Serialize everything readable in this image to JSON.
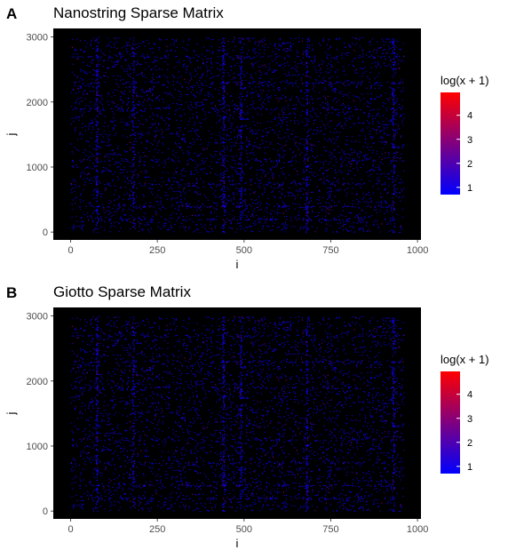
{
  "panels": [
    {
      "tag": "A",
      "title": "Nanostring Sparse Matrix"
    },
    {
      "tag": "B",
      "title": "Giotto Sparse Matrix"
    }
  ],
  "colors": {
    "panel_bg": "#000000",
    "low": "#0000ff",
    "high": "#ff0000",
    "tick": "#4d4d4d"
  },
  "chart_data": [
    {
      "type": "heatmap",
      "title": "Nanostring Sparse Matrix",
      "panel": "A",
      "xlabel": "i",
      "ylabel": "j",
      "xlim": [
        -50,
        1010
      ],
      "ylim": [
        -120,
        3130
      ],
      "x_ticks": [
        0,
        250,
        500,
        750,
        1000
      ],
      "x_tick_labels": [
        "0",
        "250",
        "500",
        "750",
        "1000"
      ],
      "y_ticks": [
        0,
        1000,
        2000,
        3000
      ],
      "y_tick_labels": [
        "0",
        "1000",
        "2000",
        "3000"
      ],
      "x_range": [
        0,
        960
      ],
      "y_range": [
        0,
        3000
      ],
      "background": "#000000",
      "legend": {
        "title": "log(x + 1)",
        "labels": [
          "1",
          "2",
          "3",
          "4"
        ],
        "values": [
          1,
          2,
          3,
          4
        ],
        "min": 0.7,
        "max": 4.95,
        "low_color": "#0000ff",
        "high_color": "#ff0000",
        "placement": "right"
      },
      "dense_columns": [
        75,
        180,
        440,
        490,
        680,
        930
      ],
      "dense_rows": [
        200,
        400,
        750,
        1100,
        1900,
        2300,
        2700
      ]
    },
    {
      "type": "heatmap",
      "title": "Giotto Sparse Matrix",
      "panel": "B",
      "xlabel": "i",
      "ylabel": "j",
      "xlim": [
        -50,
        1010
      ],
      "ylim": [
        -120,
        3130
      ],
      "x_ticks": [
        0,
        250,
        500,
        750,
        1000
      ],
      "x_tick_labels": [
        "0",
        "250",
        "500",
        "750",
        "1000"
      ],
      "y_ticks": [
        0,
        1000,
        2000,
        3000
      ],
      "y_tick_labels": [
        "0",
        "1000",
        "2000",
        "3000"
      ],
      "x_range": [
        0,
        960
      ],
      "y_range": [
        0,
        3000
      ],
      "background": "#000000",
      "legend": {
        "title": "log(x + 1)",
        "labels": [
          "1",
          "2",
          "3",
          "4"
        ],
        "values": [
          1,
          2,
          3,
          4
        ],
        "min": 0.7,
        "max": 4.95,
        "low_color": "#0000ff",
        "high_color": "#ff0000",
        "placement": "right"
      },
      "dense_columns": [
        75,
        180,
        440,
        490,
        680,
        930
      ],
      "dense_rows": [
        200,
        400,
        750,
        1100,
        1900,
        2300,
        2700
      ]
    }
  ]
}
